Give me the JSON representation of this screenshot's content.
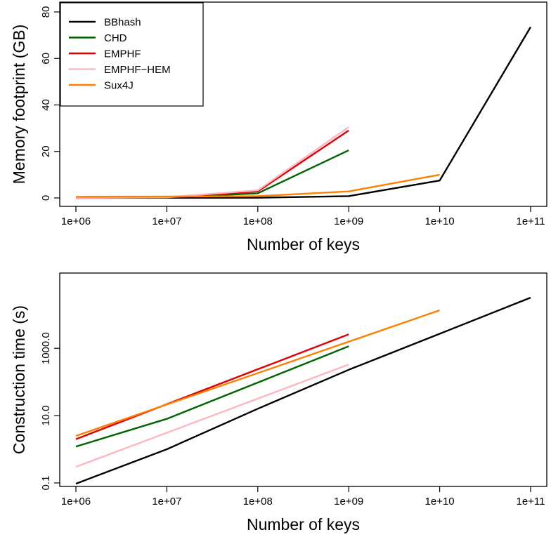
{
  "chart_data": [
    {
      "type": "line",
      "xlabel": "Number of keys",
      "ylabel": "Memory footprint (GB)",
      "x_scale": "log",
      "y_scale": "linear",
      "xlim": [
        1000000,
        100000000000
      ],
      "ylim": [
        0,
        80
      ],
      "x_ticks": [
        "1e+06",
        "1e+07",
        "1e+08",
        "1e+09",
        "1e+10",
        "1e+11"
      ],
      "y_ticks": [
        "0",
        "20",
        "40",
        "60",
        "80"
      ],
      "legend_position": "top-left",
      "series": [
        {
          "name": "BBhash",
          "color": "#000000",
          "x": [
            1000000,
            10000000,
            100000000,
            1000000000,
            10000000000,
            100000000000
          ],
          "y": [
            0.0,
            0.05,
            0.1,
            0.8,
            7.5,
            73.5
          ]
        },
        {
          "name": "CHD",
          "color": "#006400",
          "x": [
            1000000,
            10000000,
            100000000,
            1000000000
          ],
          "y": [
            0.05,
            0.2,
            2.0,
            20.5
          ]
        },
        {
          "name": "EMPHF",
          "color": "#e00000",
          "x": [
            1000000,
            10000000,
            100000000,
            1000000000
          ],
          "y": [
            0.05,
            0.3,
            2.8,
            29.0
          ]
        },
        {
          "name": "EMPHF−HEM",
          "color": "#ffb6c1",
          "x": [
            1000000,
            10000000,
            100000000,
            1000000000
          ],
          "y": [
            0.05,
            0.3,
            3.3,
            30.5
          ]
        },
        {
          "name": "Sux4J",
          "color": "#ff8000",
          "x": [
            1000000,
            10000000,
            100000000,
            1000000000,
            10000000000
          ],
          "y": [
            0.5,
            0.6,
            0.8,
            2.8,
            10.0
          ]
        }
      ]
    },
    {
      "type": "line",
      "xlabel": "Number of keys",
      "ylabel": "Construction time (s)",
      "x_scale": "log",
      "y_scale": "log",
      "xlim": [
        1000000,
        100000000000
      ],
      "ylim": [
        0.1,
        32000
      ],
      "x_ticks": [
        "1e+06",
        "1e+07",
        "1e+08",
        "1e+09",
        "1e+10",
        "1e+11"
      ],
      "y_ticks": [
        "0.1",
        "10.0",
        "1000.0"
      ],
      "series": [
        {
          "name": "BBhash",
          "color": "#000000",
          "x": [
            1000000,
            10000000,
            100000000,
            1000000000,
            10000000000,
            100000000000
          ],
          "y": [
            0.095,
            1.0,
            16,
            230,
            2700,
            32000
          ]
        },
        {
          "name": "CHD",
          "color": "#006400",
          "x": [
            1000000,
            10000000,
            1000000000
          ],
          "y": [
            1.2,
            8.0,
            1150
          ]
        },
        {
          "name": "EMPHF",
          "color": "#e00000",
          "x": [
            1000000,
            1000000000
          ],
          "y": [
            2.0,
            2600
          ]
        },
        {
          "name": "EMPHF−HEM",
          "color": "#ffb6c1",
          "x": [
            1000000,
            1000000000
          ],
          "y": [
            0.3,
            330
          ]
        },
        {
          "name": "Sux4J",
          "color": "#ff8000",
          "x": [
            1000000,
            10000000000
          ],
          "y": [
            2.5,
            13500
          ]
        }
      ]
    }
  ]
}
